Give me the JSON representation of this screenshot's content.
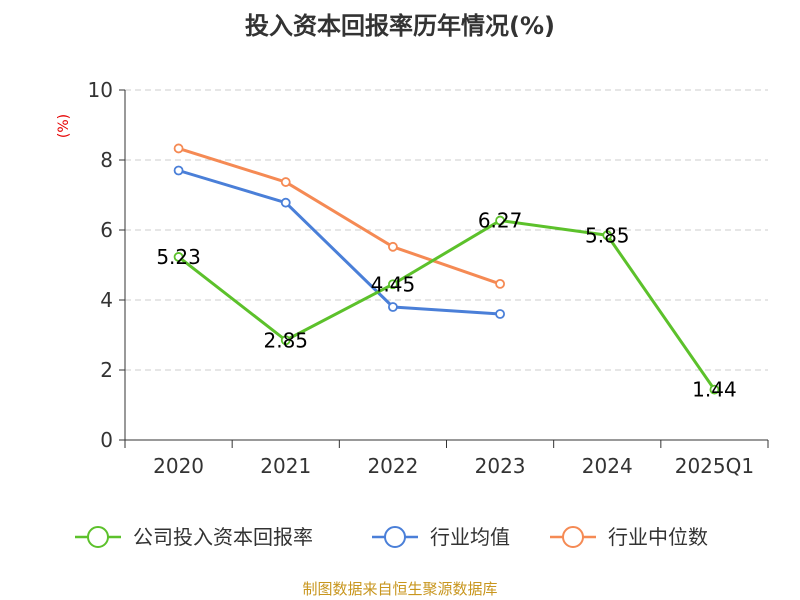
{
  "chart_data": {
    "type": "line",
    "title": "投入资本回报率历年情况(%)",
    "ylabel": "(%)",
    "xlabel": "",
    "categories": [
      "2020",
      "2021",
      "2022",
      "2023",
      "2024",
      "2025Q1"
    ],
    "ylim": [
      0,
      10
    ],
    "yticks": [
      0,
      2,
      4,
      6,
      8,
      10
    ],
    "grid": true,
    "legend_position": "bottom",
    "series": [
      {
        "name": "公司投入资本回报率",
        "color": "#5cc12b",
        "values": [
          5.23,
          2.85,
          4.45,
          6.27,
          5.85,
          1.44
        ],
        "labels": [
          "5.23",
          "2.85",
          "4.45",
          "6.27",
          "5.85",
          "1.44"
        ]
      },
      {
        "name": "行业均值",
        "color": "#4a7fd8",
        "values": [
          7.7,
          6.78,
          3.8,
          3.6,
          null,
          null
        ]
      },
      {
        "name": "行业中位数",
        "color": "#f58a54",
        "values": [
          8.33,
          7.37,
          5.52,
          4.46,
          null,
          null
        ]
      }
    ]
  },
  "source": "制图数据来自恒生聚源数据库"
}
